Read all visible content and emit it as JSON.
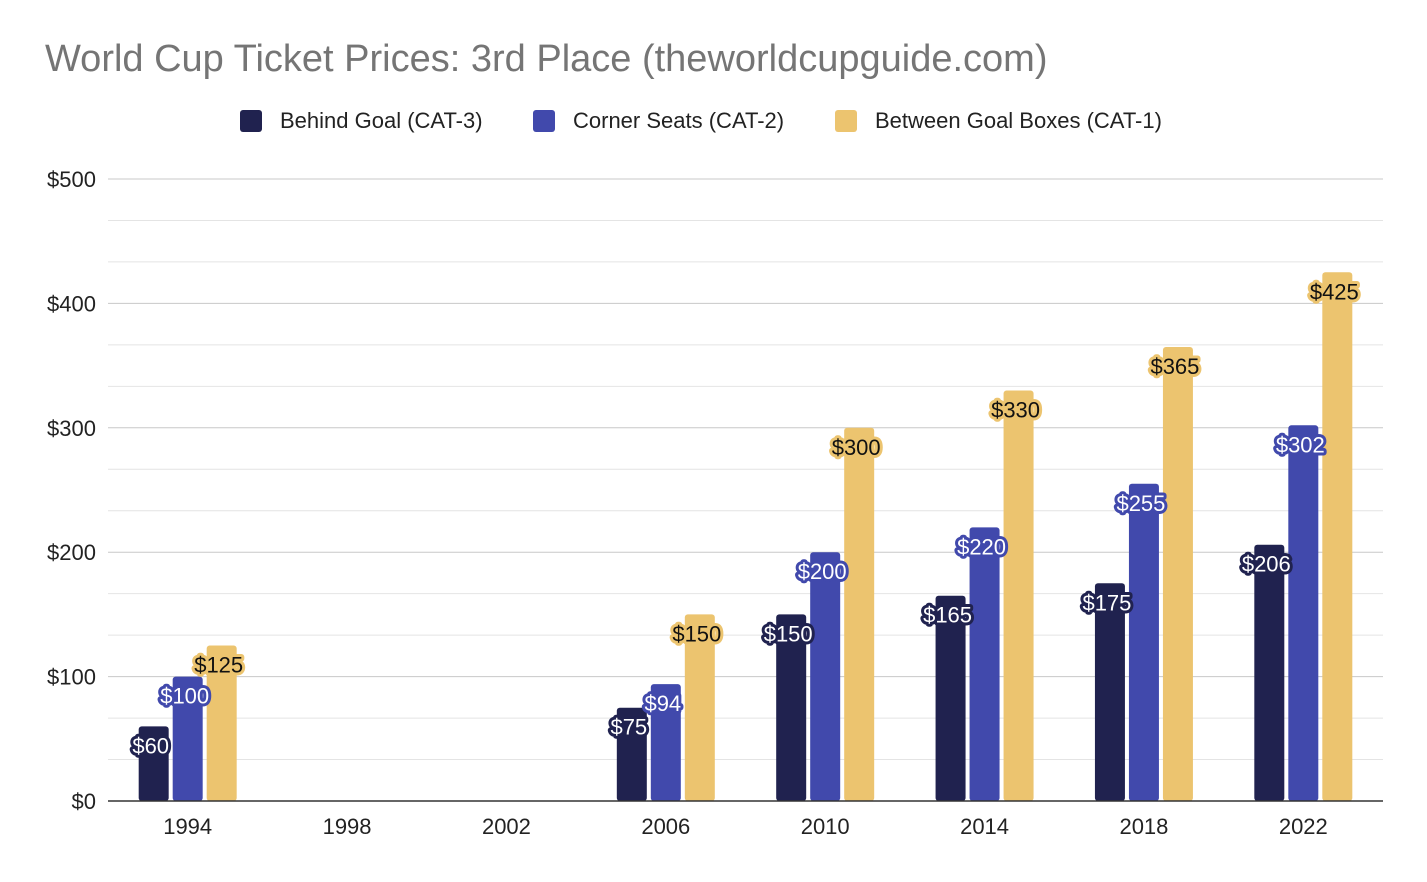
{
  "chart_data": {
    "type": "bar",
    "title": "World Cup Ticket Prices: 3rd Place (theworldcupguide.com)",
    "xlabel": "",
    "ylabel": "",
    "categories": [
      "1994",
      "1998",
      "2002",
      "2006",
      "2010",
      "2014",
      "2018",
      "2022"
    ],
    "series": [
      {
        "name": "Behind Goal (CAT-3)",
        "color": "#20224f",
        "values": [
          60,
          null,
          null,
          75,
          150,
          165,
          175,
          206
        ],
        "labels": [
          "$60",
          null,
          null,
          "$75",
          "$150",
          "$165",
          "$175",
          "$206"
        ]
      },
      {
        "name": "Corner Seats (CAT-2)",
        "color": "#4149ac",
        "values": [
          100,
          null,
          null,
          94,
          200,
          220,
          255,
          302
        ],
        "labels": [
          "$100",
          null,
          null,
          "$94",
          "$200",
          "$220",
          "$255",
          "$302"
        ]
      },
      {
        "name": "Between Goal Boxes (CAT-1)",
        "color": "#ecc46f",
        "values": [
          125,
          null,
          null,
          150,
          300,
          330,
          365,
          425
        ],
        "labels": [
          "$125",
          null,
          null,
          "$150",
          "$300",
          "$330",
          "$365",
          "$425"
        ]
      }
    ],
    "ylim": [
      0,
      500
    ],
    "yticks": [
      0,
      100,
      200,
      300,
      400,
      500
    ],
    "ytick_labels": [
      "$0",
      "$100",
      "$200",
      "$300",
      "$400",
      "$500"
    ],
    "grid": true,
    "legend_position": "top"
  }
}
